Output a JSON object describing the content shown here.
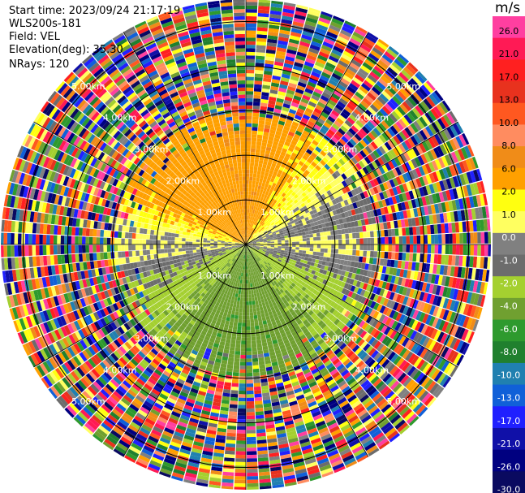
{
  "header": {
    "start_time": "Start time: 2023/09/24 21:17:19",
    "site": "WLS200s-181",
    "field": "Field: VEL",
    "elevation": "Elevation(deg): 35.30",
    "nrays": "NRays: 120"
  },
  "chart_data": {
    "type": "heatmap",
    "projection": "polar-ppi",
    "field": "VEL",
    "units": "m/s",
    "elevation_deg": 35.3,
    "n_rays": 120,
    "range_rings_km": [
      1.0,
      2.0,
      3.0,
      4.0,
      5.0
    ],
    "ring_label_texts": [
      "1.00km",
      "2.00km",
      "3.00km",
      "4.00km",
      "5.00km"
    ],
    "max_range_km": 5.5,
    "spoke_angles_deg": [
      0,
      30,
      60,
      90,
      120,
      150,
      180,
      210,
      240,
      270,
      300,
      330
    ],
    "clear_air_range_km": 3.0,
    "velocity_pattern": {
      "north_sector_mps": 5.5,
      "northeast_sector_mps": 3.0,
      "south_sector_mps": -5.5,
      "zero_line_bearing_deg": [
        85,
        265
      ]
    },
    "colorbar": {
      "tick_labels": [
        "26.0",
        "21.0",
        "17.0",
        "13.0",
        "10.0",
        "8.0",
        "6.0",
        "2.0",
        "1.0",
        "0.0",
        "-1.0",
        "-2.0",
        "-4.0",
        "-6.0",
        "-8.0",
        "-10.0",
        "-13.0",
        "-17.0",
        "-21.0",
        "-26.0",
        "-30.0"
      ],
      "colors": [
        "#ff3fa0",
        "#ff1a55",
        "#ff2020",
        "#e8321e",
        "#ff5820",
        "#ff8c60",
        "#f08c18",
        "#ffa000",
        "#ffff10",
        "#ffff60",
        "#808080",
        "#6c6c6c",
        "#a4d030",
        "#70a030",
        "#2e9a2e",
        "#20802e",
        "#2080b0",
        "#1060d8",
        "#2020ff",
        "#1010a8",
        "#000080",
        "#0a0a60"
      ]
    }
  }
}
